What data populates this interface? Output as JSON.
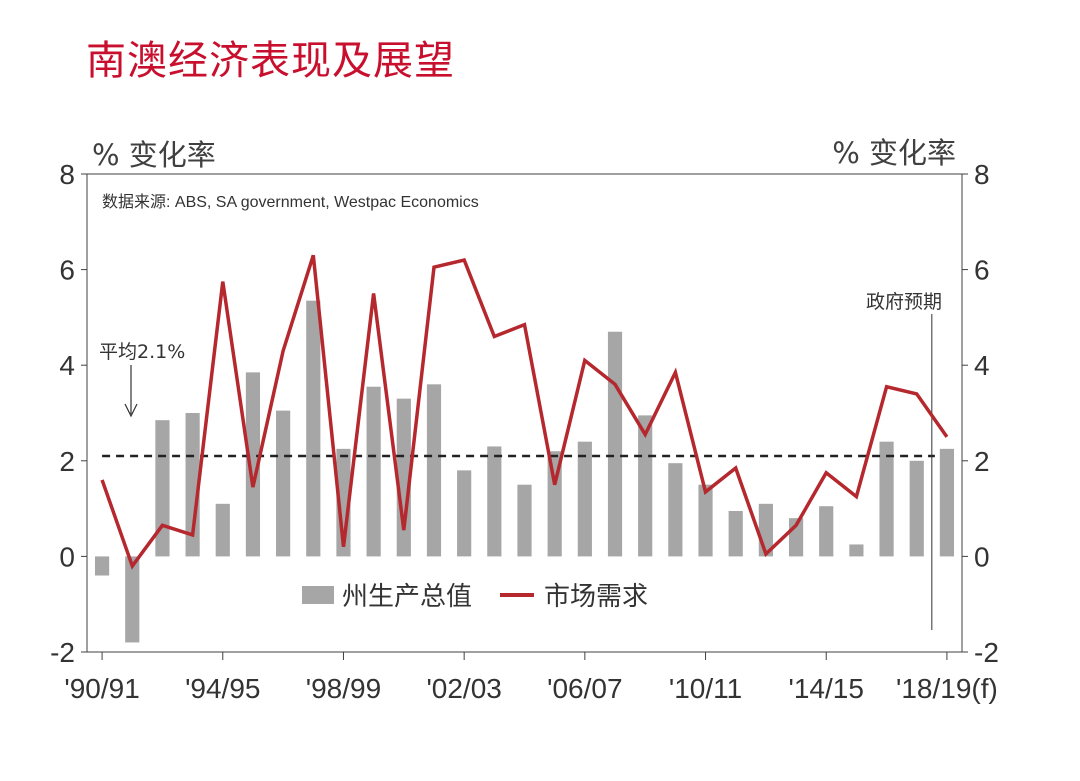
{
  "title": "南澳经济表现及展望",
  "unit_left": "% 变化率",
  "unit_right": "% 变化率",
  "source": "数据来源: ABS, SA government, Westpac Economics",
  "avg_label": "平均2.1%",
  "forecast_label": "政府预期",
  "colors": {
    "title": "#c8102e",
    "bar": "#a6a6a6",
    "line": "#b5282e",
    "axis": "#404040"
  },
  "chart_data": {
    "type": "bar",
    "categories": [
      "'90/91",
      "'91/92",
      "'92/93",
      "'93/94",
      "'94/95",
      "'95/96",
      "'96/97",
      "'97/98",
      "'98/99",
      "'99/00",
      "'00/01",
      "'01/02",
      "'02/03",
      "'03/04",
      "'04/05",
      "'05/06",
      "'06/07",
      "'07/08",
      "'08/09",
      "'09/10",
      "'10/11",
      "'11/12",
      "'12/13",
      "'13/14",
      "'14/15",
      "'15/16",
      "'16/17",
      "'17/18",
      "'18/19(f)"
    ],
    "x_tick_labels": [
      "'90/91",
      "'94/95",
      "'98/99",
      "'02/03",
      "'06/07",
      "'10/11",
      "'14/15",
      "'18/19(f)"
    ],
    "x_tick_indices": [
      0,
      4,
      8,
      12,
      16,
      20,
      24,
      28
    ],
    "y_ticks_left": [
      "-2",
      "0",
      "2",
      "4",
      "6",
      "8"
    ],
    "y_ticks_right": [
      "-2",
      "0",
      "2",
      "4",
      "6",
      "8"
    ],
    "ylim": [
      -2,
      8
    ],
    "series": [
      {
        "name": "州生产总值",
        "type": "bar",
        "values": [
          -0.4,
          -1.8,
          2.85,
          3.0,
          1.1,
          3.85,
          3.05,
          5.35,
          2.25,
          3.55,
          3.3,
          3.6,
          1.8,
          2.3,
          1.5,
          2.2,
          2.4,
          4.7,
          2.95,
          1.95,
          1.5,
          0.95,
          1.1,
          0.8,
          1.05,
          0.25,
          2.4,
          2.0,
          2.25
        ]
      },
      {
        "name": "市场需求",
        "type": "line",
        "values": [
          1.6,
          -0.2,
          0.65,
          0.45,
          5.75,
          1.45,
          4.3,
          6.3,
          0.2,
          5.5,
          0.55,
          6.05,
          6.2,
          4.6,
          4.85,
          1.5,
          4.1,
          3.6,
          2.55,
          3.85,
          1.35,
          1.85,
          0.05,
          0.65,
          1.75,
          1.25,
          3.55,
          3.4,
          2.5
        ]
      }
    ],
    "average": 2.1,
    "forecast_marker_category": "'18/19(f)"
  }
}
